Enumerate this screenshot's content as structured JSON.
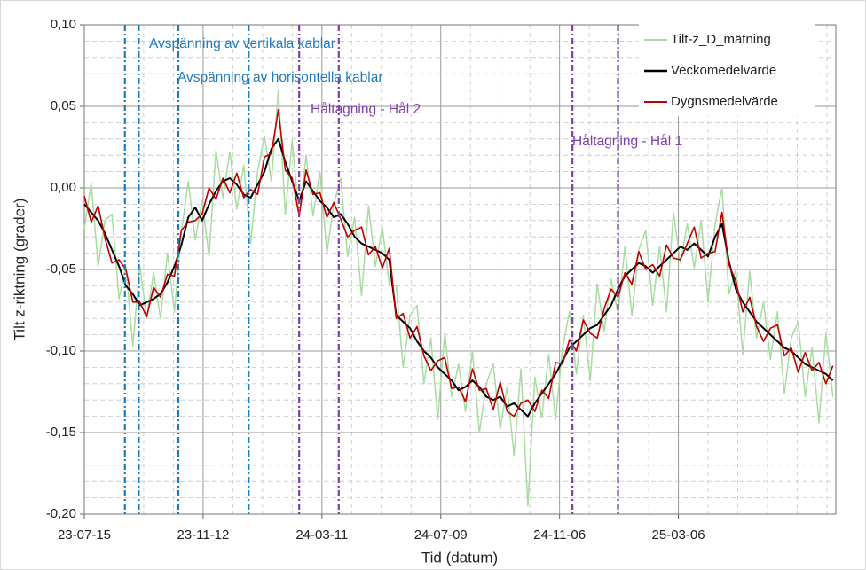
{
  "chart_data": {
    "type": "line",
    "xlabel": "Tid (datum)",
    "ylabel": "Tilt z-riktning (grader)",
    "x": [
      "2023-07-15",
      "2023-07-22",
      "2023-07-29",
      "2023-08-05",
      "2023-08-12",
      "2023-08-19",
      "2023-08-26",
      "2023-09-02",
      "2023-09-09",
      "2023-09-16",
      "2023-09-23",
      "2023-09-30",
      "2023-10-07",
      "2023-10-14",
      "2023-10-21",
      "2023-10-28",
      "2023-11-04",
      "2023-11-11",
      "2023-11-18",
      "2023-11-25",
      "2023-12-02",
      "2023-12-09",
      "2023-12-16",
      "2023-12-23",
      "2023-12-30",
      "2024-01-06",
      "2024-01-13",
      "2024-01-20",
      "2024-01-27",
      "2024-02-03",
      "2024-02-10",
      "2024-02-17",
      "2024-02-24",
      "2024-03-02",
      "2024-03-09",
      "2024-03-16",
      "2024-03-23",
      "2024-03-30",
      "2024-04-06",
      "2024-04-13",
      "2024-04-20",
      "2024-04-27",
      "2024-05-04",
      "2024-05-11",
      "2024-05-18",
      "2024-05-25",
      "2024-06-01",
      "2024-06-08",
      "2024-06-15",
      "2024-06-22",
      "2024-06-29",
      "2024-07-06",
      "2024-07-13",
      "2024-07-20",
      "2024-07-27",
      "2024-08-03",
      "2024-08-10",
      "2024-08-17",
      "2024-08-24",
      "2024-08-31",
      "2024-09-07",
      "2024-09-14",
      "2024-09-21",
      "2024-09-28",
      "2024-10-05",
      "2024-10-12",
      "2024-10-19",
      "2024-10-26",
      "2024-11-02",
      "2024-11-09",
      "2024-11-16",
      "2024-11-23",
      "2024-11-30",
      "2024-12-07",
      "2024-12-14",
      "2024-12-21",
      "2024-12-28",
      "2025-01-04",
      "2025-01-11",
      "2025-01-18",
      "2025-01-25",
      "2025-02-01",
      "2025-02-08",
      "2025-02-15",
      "2025-02-22",
      "2025-03-01",
      "2025-03-08",
      "2025-03-15",
      "2025-03-22",
      "2025-03-29",
      "2025-04-05",
      "2025-04-12",
      "2025-04-19",
      "2025-04-26",
      "2025-05-03",
      "2025-05-10",
      "2025-05-17",
      "2025-05-24",
      "2025-05-31",
      "2025-06-07",
      "2025-06-14",
      "2025-06-21",
      "2025-06-28",
      "2025-07-05",
      "2025-07-12",
      "2025-07-19",
      "2025-07-26",
      "2025-08-02",
      "2025-08-09"
    ],
    "series": [
      {
        "name": "Tilt-z_D_mätning",
        "color": "#a8dca0",
        "width": 1.5,
        "values": [
          -0.025,
          0.003,
          -0.048,
          -0.02,
          -0.016,
          -0.068,
          -0.048,
          -0.097,
          -0.047,
          -0.08,
          -0.052,
          -0.08,
          -0.04,
          -0.076,
          -0.027,
          0.004,
          -0.032,
          -0.008,
          -0.042,
          0.023,
          -0.006,
          0.022,
          -0.013,
          0.014,
          -0.034,
          0.01,
          0.032,
          0.004,
          0.06,
          -0.016,
          0.029,
          -0.018,
          0.02,
          -0.017,
          0.01,
          -0.04,
          -0.01,
          0.006,
          -0.042,
          -0.018,
          -0.066,
          -0.011,
          -0.048,
          -0.024,
          -0.059,
          -0.06,
          -0.11,
          -0.078,
          -0.072,
          -0.12,
          -0.092,
          -0.142,
          -0.089,
          -0.128,
          -0.108,
          -0.137,
          -0.1,
          -0.15,
          -0.12,
          -0.108,
          -0.148,
          -0.122,
          -0.164,
          -0.111,
          -0.195,
          -0.116,
          -0.141,
          -0.102,
          -0.142,
          -0.098,
          -0.076,
          -0.114,
          -0.078,
          -0.118,
          -0.059,
          -0.088,
          -0.056,
          -0.077,
          -0.036,
          -0.078,
          -0.038,
          -0.026,
          -0.072,
          -0.036,
          -0.076,
          -0.015,
          -0.046,
          -0.022,
          -0.049,
          -0.02,
          -0.07,
          -0.022,
          0.0,
          -0.065,
          -0.05,
          -0.102,
          -0.051,
          -0.092,
          -0.07,
          -0.105,
          -0.076,
          -0.126,
          -0.092,
          -0.082,
          -0.128,
          -0.098,
          -0.144,
          -0.089,
          -0.128
        ]
      },
      {
        "name": "Veckomedelvärde",
        "color": "#000000",
        "width": 2,
        "values": [
          -0.01,
          -0.015,
          -0.02,
          -0.028,
          -0.038,
          -0.048,
          -0.06,
          -0.065,
          -0.072,
          -0.07,
          -0.068,
          -0.065,
          -0.058,
          -0.048,
          -0.035,
          -0.018,
          -0.012,
          -0.02,
          -0.01,
          -0.002,
          0.004,
          0.006,
          0.002,
          -0.004,
          -0.006,
          0.002,
          0.01,
          0.024,
          0.03,
          0.016,
          0.004,
          -0.008,
          0.004,
          -0.002,
          -0.008,
          -0.012,
          -0.018,
          -0.016,
          -0.022,
          -0.03,
          -0.034,
          -0.036,
          -0.038,
          -0.04,
          -0.044,
          -0.078,
          -0.082,
          -0.086,
          -0.094,
          -0.1,
          -0.104,
          -0.11,
          -0.114,
          -0.118,
          -0.124,
          -0.122,
          -0.118,
          -0.122,
          -0.128,
          -0.13,
          -0.128,
          -0.134,
          -0.132,
          -0.136,
          -0.14,
          -0.132,
          -0.126,
          -0.12,
          -0.114,
          -0.106,
          -0.098,
          -0.094,
          -0.09,
          -0.086,
          -0.084,
          -0.078,
          -0.072,
          -0.062,
          -0.054,
          -0.05,
          -0.046,
          -0.048,
          -0.052,
          -0.048,
          -0.044,
          -0.04,
          -0.036,
          -0.038,
          -0.034,
          -0.038,
          -0.042,
          -0.03,
          -0.022,
          -0.045,
          -0.062,
          -0.07,
          -0.076,
          -0.082,
          -0.086,
          -0.09,
          -0.094,
          -0.098,
          -0.1,
          -0.104,
          -0.108,
          -0.11,
          -0.112,
          -0.114,
          -0.118
        ]
      },
      {
        "name": "Dygnsmedelvärde",
        "color": "#c00000",
        "width": 1.6,
        "values": [
          -0.005,
          -0.021,
          -0.011,
          -0.031,
          -0.046,
          -0.044,
          -0.05,
          -0.07,
          -0.07,
          -0.079,
          -0.061,
          -0.067,
          -0.053,
          -0.054,
          -0.026,
          -0.021,
          -0.02,
          -0.016,
          0.0,
          -0.007,
          0.006,
          -0.003,
          0.009,
          -0.006,
          -0.001,
          -0.004,
          0.019,
          0.021,
          0.048,
          0.011,
          0.006,
          -0.017,
          0.011,
          -0.004,
          -0.003,
          -0.018,
          -0.009,
          -0.019,
          -0.03,
          -0.026,
          -0.024,
          -0.041,
          -0.036,
          -0.049,
          -0.037,
          -0.08,
          -0.077,
          -0.092,
          -0.085,
          -0.103,
          -0.112,
          -0.106,
          -0.104,
          -0.123,
          -0.122,
          -0.131,
          -0.111,
          -0.124,
          -0.123,
          -0.136,
          -0.119,
          -0.137,
          -0.14,
          -0.132,
          -0.13,
          -0.137,
          -0.124,
          -0.129,
          -0.107,
          -0.108,
          -0.093,
          -0.1,
          -0.081,
          -0.089,
          -0.092,
          -0.074,
          -0.062,
          -0.067,
          -0.052,
          -0.059,
          -0.039,
          -0.05,
          -0.047,
          -0.054,
          -0.035,
          -0.043,
          -0.044,
          -0.034,
          -0.024,
          -0.043,
          -0.04,
          -0.039,
          -0.015,
          -0.047,
          -0.057,
          -0.076,
          -0.067,
          -0.085,
          -0.094,
          -0.086,
          -0.084,
          -0.103,
          -0.098,
          -0.113,
          -0.101,
          -0.112,
          -0.107,
          -0.12,
          -0.109
        ]
      }
    ],
    "xlim": [
      "2023-07-15",
      "2025-08-12"
    ],
    "xticks": [
      {
        "value": "2023-07-15",
        "label": "23-07-15"
      },
      {
        "value": "2023-11-12",
        "label": "23-11-12"
      },
      {
        "value": "2024-03-11",
        "label": "24-03-11"
      },
      {
        "value": "2024-07-09",
        "label": "24-07-09"
      },
      {
        "value": "2024-11-06",
        "label": "24-11-06"
      },
      {
        "value": "2025-03-06",
        "label": "25-03-06"
      }
    ],
    "ylim": [
      -0.2,
      0.1
    ],
    "yticks": [
      {
        "value": -0.2,
        "label": "-0,20"
      },
      {
        "value": -0.15,
        "label": "-0,15"
      },
      {
        "value": -0.1,
        "label": "-0,10"
      },
      {
        "value": -0.05,
        "label": "-0,05"
      },
      {
        "value": 0,
        "label": "0,00"
      },
      {
        "value": 0.05,
        "label": "0,05"
      },
      {
        "value": 0.1,
        "label": "0,10"
      }
    ],
    "grid": true,
    "minor_grid": true,
    "legend": "upper right",
    "events": [
      {
        "x": "2023-08-25",
        "color": "#1f7bc0"
      },
      {
        "x": "2023-09-08",
        "color": "#1f7bc0"
      },
      {
        "x": "2023-10-18",
        "color": "#1f7bc0"
      },
      {
        "x": "2023-12-28",
        "color": "#1f7bc0"
      },
      {
        "x": "2024-02-17",
        "color": "#7e3fa8"
      },
      {
        "x": "2024-03-28",
        "color": "#7e3fa8"
      },
      {
        "x": "2024-11-19",
        "color": "#7e3fa8"
      },
      {
        "x": "2025-01-04",
        "color": "#7e3fa8"
      }
    ],
    "annotations": [
      {
        "text": "Avspänning av vertikala kablar",
        "color": "#1f7bc0"
      },
      {
        "text": "Avspänning av horisontella kablar",
        "color": "#1f7bc0"
      },
      {
        "text": "Håltagning - Hål  2",
        "color": "#7e3fa8"
      },
      {
        "text": "Håltagning - Hål  1",
        "color": "#7e3fa8"
      }
    ]
  }
}
